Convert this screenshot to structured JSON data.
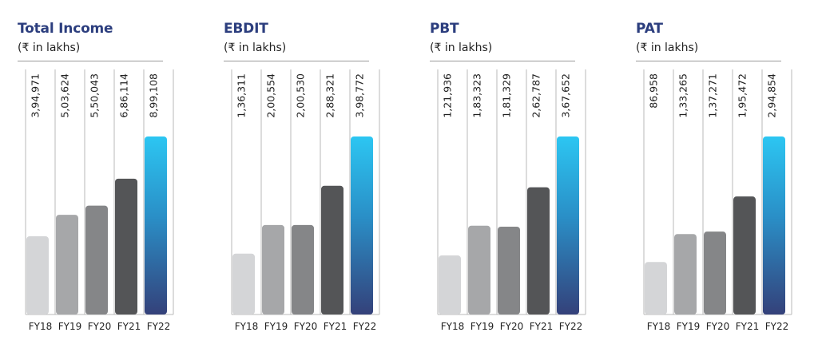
{
  "chart_data": [
    {
      "type": "bar",
      "title": "Total Income",
      "subtitle": "(₹ in lakhs)",
      "categories": [
        "FY18",
        "FY19",
        "FY20",
        "FY21",
        "FY22"
      ],
      "values": [
        394971,
        503624,
        550043,
        686114,
        899108
      ],
      "value_labels": [
        "3,94,971",
        "5,03,624",
        "5,50,043",
        "6,86,114",
        "8,99,108"
      ]
    },
    {
      "type": "bar",
      "title": "EBDIT",
      "subtitle": "(₹ in lakhs)",
      "categories": [
        "FY18",
        "FY19",
        "FY20",
        "FY21",
        "FY22"
      ],
      "values": [
        136311,
        200554,
        200530,
        288321,
        398772
      ],
      "value_labels": [
        "1,36,311",
        "2,00,554",
        "2,00,530",
        "2,88,321",
        "3,98,772"
      ]
    },
    {
      "type": "bar",
      "title": "PBT",
      "subtitle": "(₹ in lakhs)",
      "categories": [
        "FY18",
        "FY19",
        "FY20",
        "FY21",
        "FY22"
      ],
      "values": [
        121936,
        183323,
        181329,
        262787,
        367652
      ],
      "value_labels": [
        "1,21,936",
        "1,83,323",
        "1,81,329",
        "2,62,787",
        "3,67,652"
      ]
    },
    {
      "type": "bar",
      "title": "PAT",
      "subtitle": "(₹ in lakhs)",
      "categories": [
        "FY18",
        "FY19",
        "FY20",
        "FY21",
        "FY22"
      ],
      "values": [
        86958,
        133265,
        137271,
        195472,
        294854
      ],
      "value_labels": [
        "86,958",
        "1,33,265",
        "1,37,271",
        "1,95,472",
        "2,94,854"
      ]
    }
  ],
  "colors": {
    "title": "#2c3e7e",
    "bars": [
      "#d4d5d7",
      "#a6a7a9",
      "#858688",
      "#545557"
    ],
    "highlight_top": "#2cc6f2",
    "highlight_bottom": "#34417a"
  }
}
